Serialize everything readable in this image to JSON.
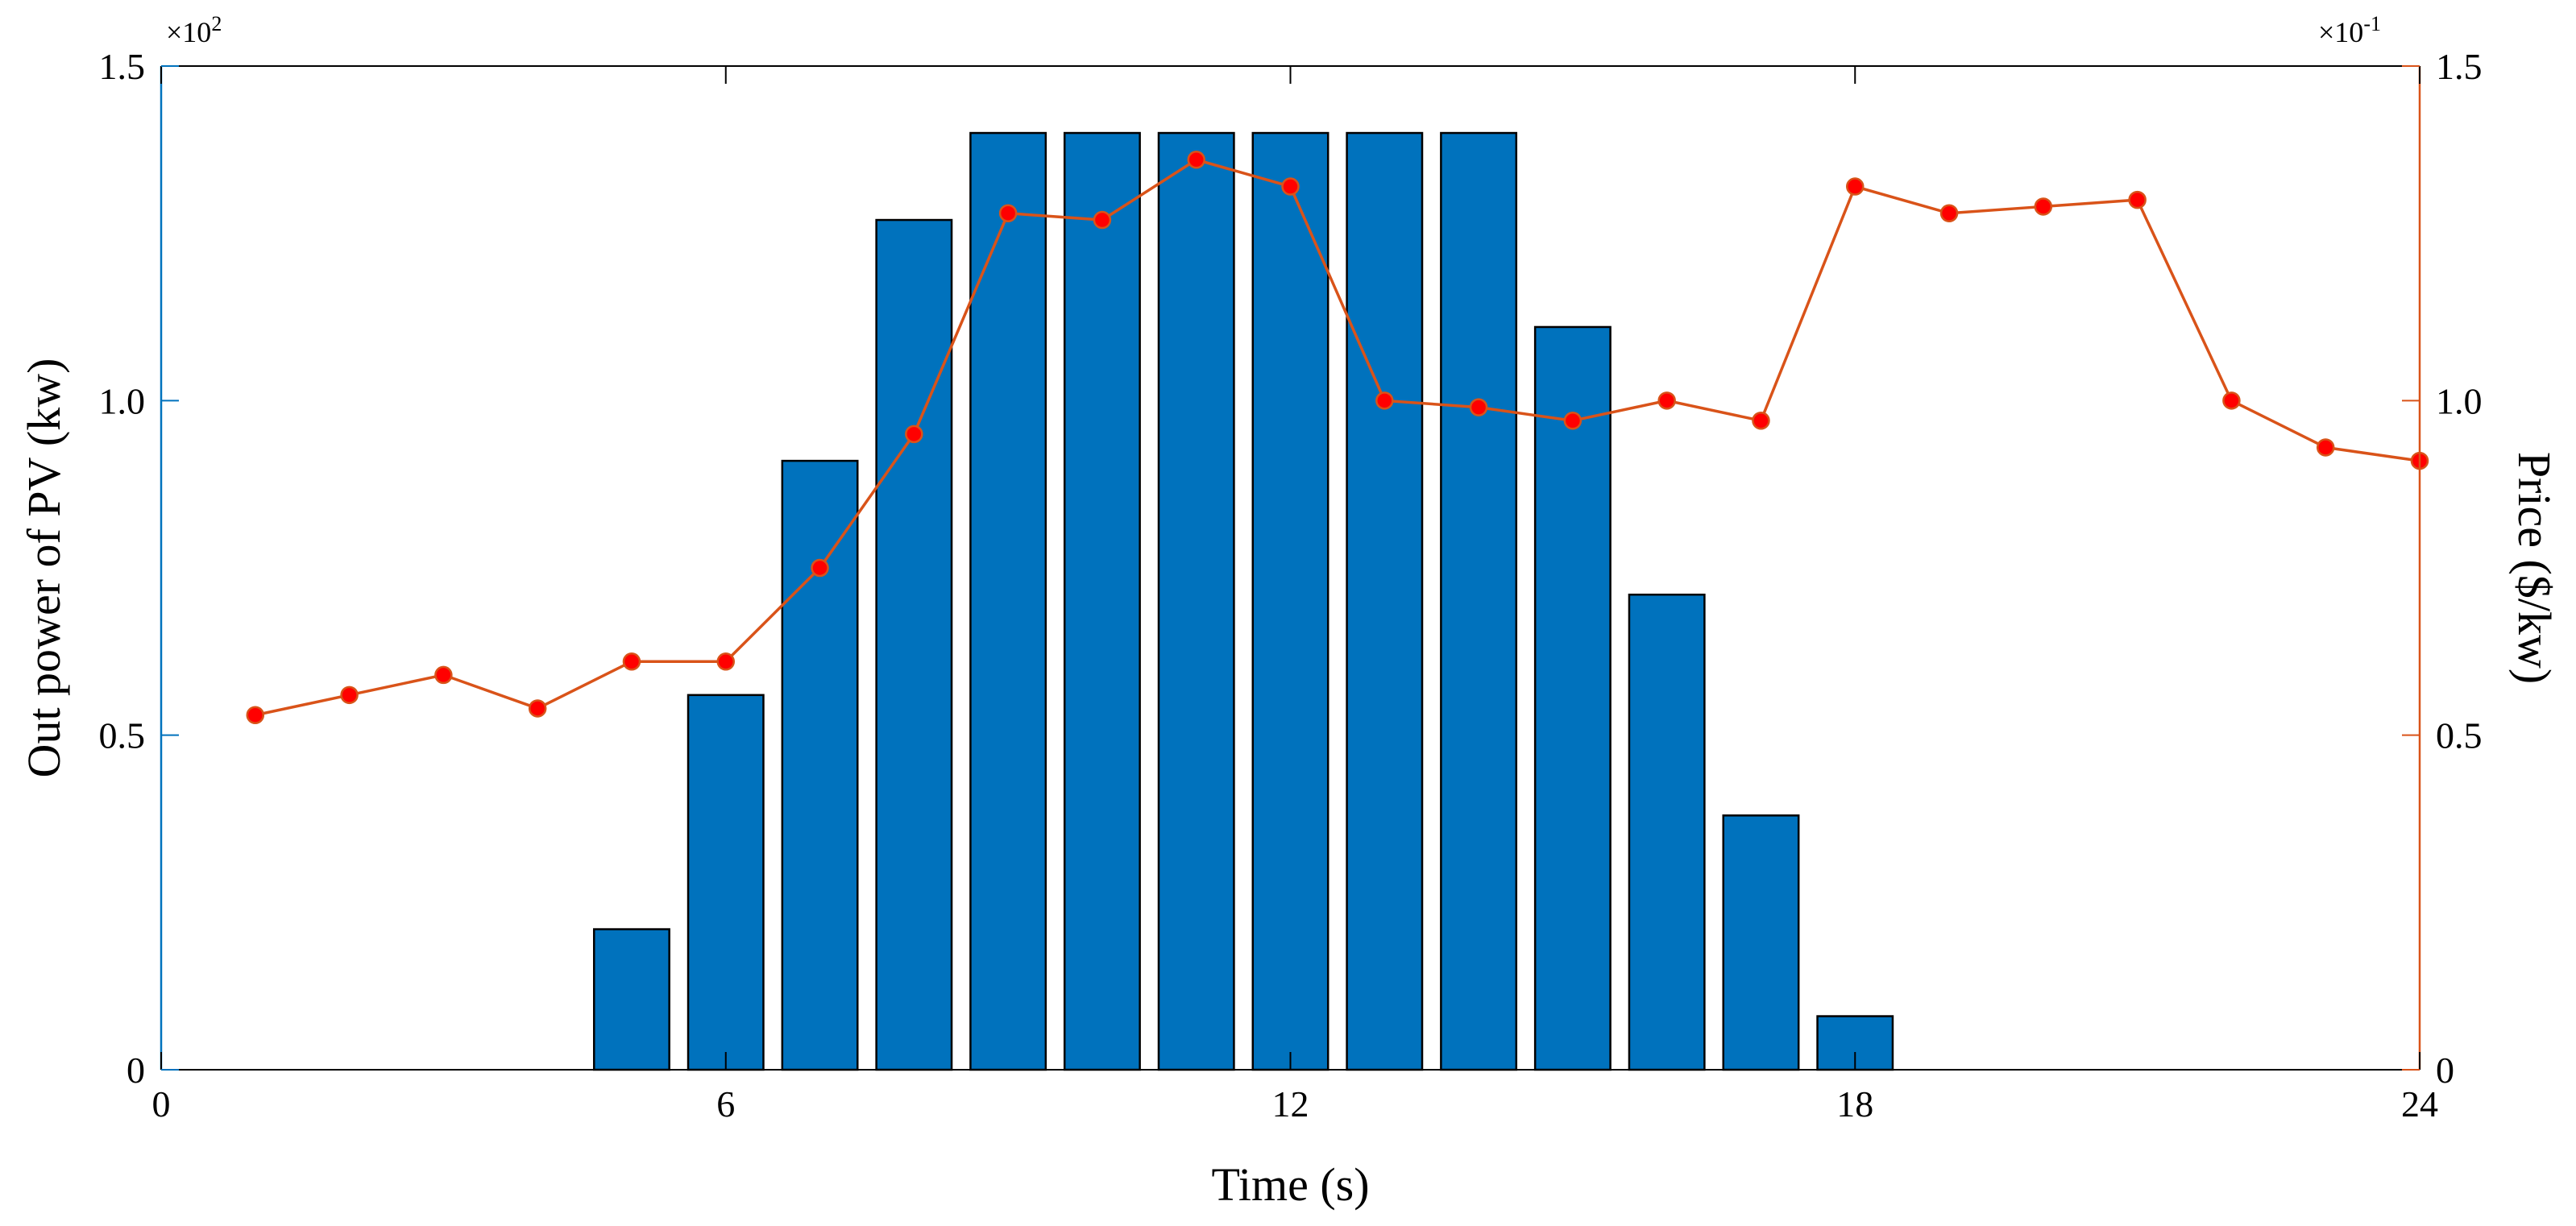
{
  "chart_data": {
    "type": "bar+line",
    "title": "",
    "xlabel": "Time (s)",
    "xlim": [
      0,
      24
    ],
    "xticks": [
      "0",
      "6",
      "12",
      "18",
      "24"
    ],
    "ylabel_left": "Out power of PV (kw)",
    "ylim_left": [
      0,
      1.5
    ],
    "yticks_left": [
      "0",
      "0.5",
      "1.0",
      "1.5"
    ],
    "exponent_left": "×10",
    "exponent_left_power": "2",
    "ylabel_right": "Price ($/kw)",
    "ylim_right": [
      0,
      1.5
    ],
    "yticks_right": [
      "0",
      "0.5",
      "1.0",
      "1.5"
    ],
    "exponent_right": "×10",
    "exponent_right_power": "-1",
    "grid": false,
    "colors": {
      "bars": "#0072bd",
      "line": "#d95319",
      "markers": "#ff0000",
      "left_axis": "#0072bd",
      "right_axis": "#d95319"
    },
    "bars": {
      "x": [
        5,
        6,
        7,
        8,
        9,
        10,
        11,
        12,
        13,
        14,
        15,
        16,
        17,
        18
      ],
      "values": [
        0.21,
        0.56,
        0.91,
        1.27,
        1.4,
        1.4,
        1.4,
        1.4,
        1.4,
        1.4,
        1.11,
        0.71,
        0.38,
        0.08
      ]
    },
    "line": {
      "x": [
        1,
        2,
        3,
        4,
        5,
        6,
        7,
        8,
        9,
        10,
        11,
        12,
        13,
        14,
        15,
        16,
        17,
        18,
        19,
        20,
        21,
        22,
        23,
        24
      ],
      "values": [
        0.53,
        0.56,
        0.59,
        0.54,
        0.61,
        0.61,
        0.75,
        0.95,
        1.28,
        1.27,
        1.36,
        1.32,
        1.0,
        0.99,
        0.97,
        1.0,
        0.97,
        1.32,
        1.28,
        1.29,
        1.3,
        1.0,
        0.93,
        0.91
      ]
    }
  }
}
